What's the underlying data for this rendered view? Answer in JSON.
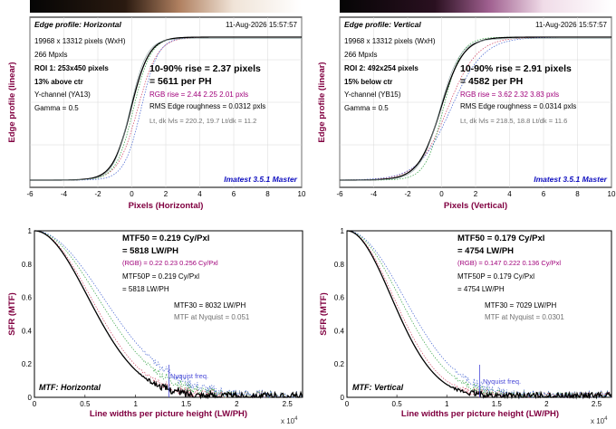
{
  "colors": {
    "axis_label": "#800040",
    "rgb_text": "#a0007a",
    "caption": "#1010c0",
    "gray_text": "#707070",
    "nyquist": "#4a4ad8"
  },
  "panels": [
    {
      "id": "edge-h",
      "title": "Edge profile: Horizontal",
      "date": "11-Aug-2026 15:57:57",
      "size": "19968 x 13312 pixels (WxH)",
      "mpxls": "266 Mpxls",
      "roi": "ROI 1:  253x450 pixels",
      "position": "13% above ctr",
      "channel": "Y-channel  (YA13)",
      "gamma": "Gamma = 0.5",
      "rise": "10-90% rise = 2.37 pixels",
      "per_ph": "= 5611 per PH",
      "rgb_rise": "RGB rise = 2.44  2.25  2.01 pxls",
      "roughness": "RMS Edge roughness = 0.0312 pxls",
      "lt": "Lt, dk lvls = 220.2, 19.7    Lt/dk = 11.2",
      "footer": "Imatest 3.5.1 Master",
      "ylabel": "Edge profile (linear)",
      "xlabel": "Pixels (Horizontal)"
    },
    {
      "id": "edge-v",
      "title": "Edge profile: Vertical",
      "date": "11-Aug-2026 15:57:57",
      "size": "19968 x 13312 pixels (WxH)",
      "mpxls": "266 Mpxls",
      "roi": "ROI 2:  492x254 pixels",
      "position": "15% below ctr",
      "channel": "Y-channel  (YB15)",
      "gamma": "Gamma = 0.5",
      "rise": "10-90% rise = 2.91 pixels",
      "per_ph": "= 4582 per PH",
      "rgb_rise": "RGB rise = 3.62  2.32  3.83 pxls",
      "roughness": "RMS Edge roughness = 0.0314 pxls",
      "lt": "Lt, dk lvls = 218.5, 18.8    Lt/dk = 11.6",
      "footer": "Imatest 3.5.1 Master",
      "ylabel": "Edge profile (linear)",
      "xlabel": "Pixels (Vertical)"
    },
    {
      "id": "mtf-h",
      "mtf50": "MTF50 = 0.219 Cy/Pxl",
      "lwph": "= 5818 LW/PH",
      "rgb": "(RGB) = 0.22  0.23  0.256 Cy/Pxl",
      "mtf50p": "MTF50P = 0.219 Cy/Pxl",
      "lwph2": "= 5818 LW/PH",
      "mtf30": "MTF30 = 8032 LW/PH",
      "nyq": "MTF at Nyquist = 0.051",
      "nyq_label": "Nyquist freq.",
      "caption": "MTF: Horizontal",
      "ylabel": "SFR (MTF)",
      "xlabel": "Line widths per picture height (LW/PH)",
      "exp": "x 10",
      "exp_pow": "4"
    },
    {
      "id": "mtf-v",
      "mtf50": "MTF50 = 0.179 Cy/Pxl",
      "lwph": "= 4754 LW/PH",
      "rgb": "(RGB) = 0.147  0.222  0.136 Cy/Pxl",
      "mtf50p": "MTF50P = 0.179 Cy/Pxl",
      "lwph2": "= 4754 LW/PH",
      "mtf30": "MTF30 = 7029 LW/PH",
      "nyq": "MTF at Nyquist = 0.0301",
      "nyq_label": "Nyquist freq.",
      "caption": "MTF: Vertical",
      "ylabel": "SFR (MTF)",
      "xlabel": "Line widths per picture height (LW/PH)",
      "exp": "x 10",
      "exp_pow": "4"
    }
  ],
  "chart_data": [
    {
      "type": "line",
      "xlim": [
        -6,
        10
      ],
      "ylim": [
        0,
        1
      ],
      "xticks": [
        "-6",
        "-4",
        "-2",
        "0",
        "2",
        "4",
        "6",
        "8",
        "10"
      ],
      "grid": true,
      "rise_pixels": 2.37,
      "rgb_rise": [
        2.44,
        2.25,
        2.01
      ]
    },
    {
      "type": "line",
      "xlim": [
        -6,
        10
      ],
      "ylim": [
        0,
        1
      ],
      "xticks": [
        "-6",
        "-4",
        "-2",
        "0",
        "2",
        "4",
        "6",
        "8",
        "10"
      ],
      "grid": true,
      "rise_pixels": 2.91,
      "rgb_rise": [
        3.62,
        2.32,
        3.83
      ]
    },
    {
      "type": "line",
      "xlim": [
        0,
        2.65
      ],
      "ylim": [
        0,
        1
      ],
      "xticks": [
        "0",
        "0.5",
        "1",
        "1.5",
        "2",
        "2.5"
      ],
      "yticks": [
        "0",
        "0.2",
        "0.4",
        "0.6",
        "0.8",
        "1"
      ],
      "nyquist_x": 1.33,
      "mtf50_lwph": 5818,
      "mtf30_lwph": 8032,
      "mtf_nyquist": 0.051
    },
    {
      "type": "line",
      "xlim": [
        0,
        2.65
      ],
      "ylim": [
        0,
        1
      ],
      "xticks": [
        "0",
        "0.5",
        "1",
        "1.5",
        "2",
        "2.5"
      ],
      "yticks": [
        "0",
        "0.2",
        "0.4",
        "0.6",
        "0.8",
        "1"
      ],
      "nyquist_x": 1.33,
      "mtf50_lwph": 4754,
      "mtf30_lwph": 7029,
      "mtf_nyquist": 0.0301
    }
  ]
}
